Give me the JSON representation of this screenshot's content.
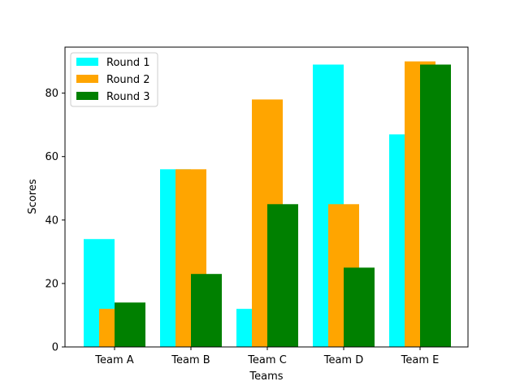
{
  "chart_data": {
    "type": "bar",
    "title": "",
    "xlabel": "Teams",
    "ylabel": "Scores",
    "categories": [
      "Team A",
      "Team B",
      "Team C",
      "Team D",
      "Team E"
    ],
    "series": [
      {
        "name": "Round 1",
        "color": "#00ffff",
        "values": [
          34,
          56,
          12,
          89,
          67
        ]
      },
      {
        "name": "Round 2",
        "color": "#ffa500",
        "values": [
          12,
          56,
          78,
          45,
          90
        ]
      },
      {
        "name": "Round 3",
        "color": "#008000",
        "values": [
          14,
          23,
          45,
          25,
          89
        ]
      }
    ],
    "yticks": [
      0,
      20,
      40,
      60,
      80
    ],
    "ylim": [
      0,
      94.5
    ],
    "grid": false,
    "legend_position": "top-left"
  }
}
